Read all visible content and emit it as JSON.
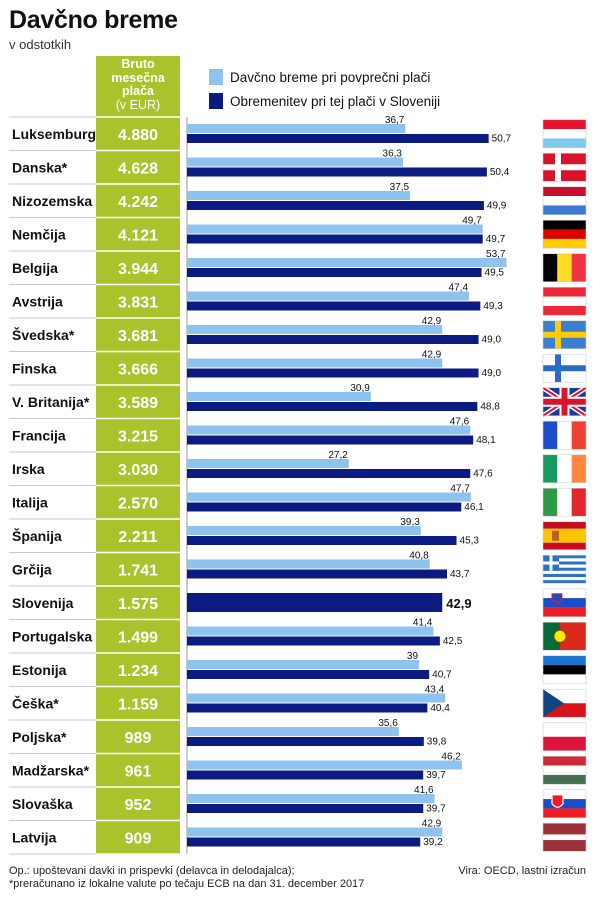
{
  "title": "Davčno breme",
  "subtitle": "v odstotkih",
  "column_header": [
    "Bruto",
    "mesečna",
    "plača"
  ],
  "column_unit": "(v EUR)",
  "legend": [
    {
      "label": "Davčno breme pri povprečni plači",
      "color": "#8ec3ef"
    },
    {
      "label": "Obremenitev pri tej plači v Sloveniji",
      "color": "#0b1b82"
    }
  ],
  "footnote_lines": [
    "Op.: upoštevani davki in prispevki (delavca in delodajalca);",
    "*preračunano iz lokalne valute po tečaju ECB na dan 31. december 2017"
  ],
  "source": "Vira: OECD, lastni izračun",
  "chart_data": {
    "type": "bar",
    "orientation": "horizontal",
    "categories": [
      "Luksemburg",
      "Danska*",
      "Nizozemska",
      "Nemčija",
      "Belgija",
      "Avstrija",
      "Švedska*",
      "Finska",
      "V. Britanija*",
      "Francija",
      "Irska",
      "Italija",
      "Španija",
      "Grčija",
      "Slovenija",
      "Portugalska",
      "Estonija",
      "Češka*",
      "Poljska*",
      "Madžarska*",
      "Slovaška",
      "Latvija"
    ],
    "gross_salary_labels": [
      "4.880",
      "4.628",
      "4.242",
      "4.121",
      "3.944",
      "3.831",
      "3.681",
      "3.666",
      "3.589",
      "3.215",
      "3.030",
      "2.570",
      "2.211",
      "1.741",
      "1.575",
      "1.499",
      "1.234",
      "1.159",
      "989",
      "961",
      "952",
      "909"
    ],
    "series": [
      {
        "name": "Davčno breme pri povprečni plači",
        "color": "#8ec3ef",
        "values": [
          36.7,
          36.3,
          37.5,
          49.7,
          53.7,
          47.4,
          42.9,
          42.9,
          30.9,
          47.6,
          27.2,
          47.7,
          39.3,
          40.8,
          null,
          41.4,
          39,
          43.4,
          35.6,
          46.2,
          41.6,
          42.9
        ],
        "labels": [
          "36,7",
          "36,3",
          "37,5",
          "49,7",
          "53,7",
          "47,4",
          "42,9",
          "42,9",
          "30,9",
          "47,6",
          "27,2",
          "47,7",
          "39,3",
          "40,8",
          "",
          "41,4",
          "39",
          "43,4",
          "35,6",
          "46,2",
          "41,6",
          "42,9"
        ]
      },
      {
        "name": "Obremenitev pri tej plači v Sloveniji",
        "color": "#0b1b82",
        "values": [
          50.7,
          50.4,
          49.9,
          49.7,
          49.5,
          49.3,
          49.0,
          49.0,
          48.8,
          48.1,
          47.6,
          46.1,
          45.3,
          43.7,
          42.9,
          42.5,
          40.7,
          40.4,
          39.8,
          39.7,
          39.7,
          39.2
        ],
        "labels": [
          "50,7",
          "50,4",
          "49,9",
          "49,7",
          "49,5",
          "49,3",
          "49,0",
          "49,0",
          "48,8",
          "48,1",
          "47,6",
          "46,1",
          "45,3",
          "43,7",
          "42,9",
          "42,5",
          "40,7",
          "40,4",
          "39,8",
          "39,7",
          "39,7",
          "39,2"
        ]
      }
    ],
    "flags": [
      "flag-luxembourg",
      "flag-denmark",
      "flag-netherlands",
      "flag-germany",
      "flag-belgium",
      "flag-austria",
      "flag-sweden",
      "flag-finland",
      "flag-uk",
      "flag-france",
      "flag-ireland",
      "flag-italy",
      "flag-spain",
      "flag-greece",
      "flag-slovenia",
      "flag-portugal",
      "flag-estonia",
      "flag-czechia",
      "flag-poland",
      "flag-hungary",
      "flag-slovakia",
      "flag-latvia"
    ],
    "xlim": [
      0,
      60
    ]
  }
}
